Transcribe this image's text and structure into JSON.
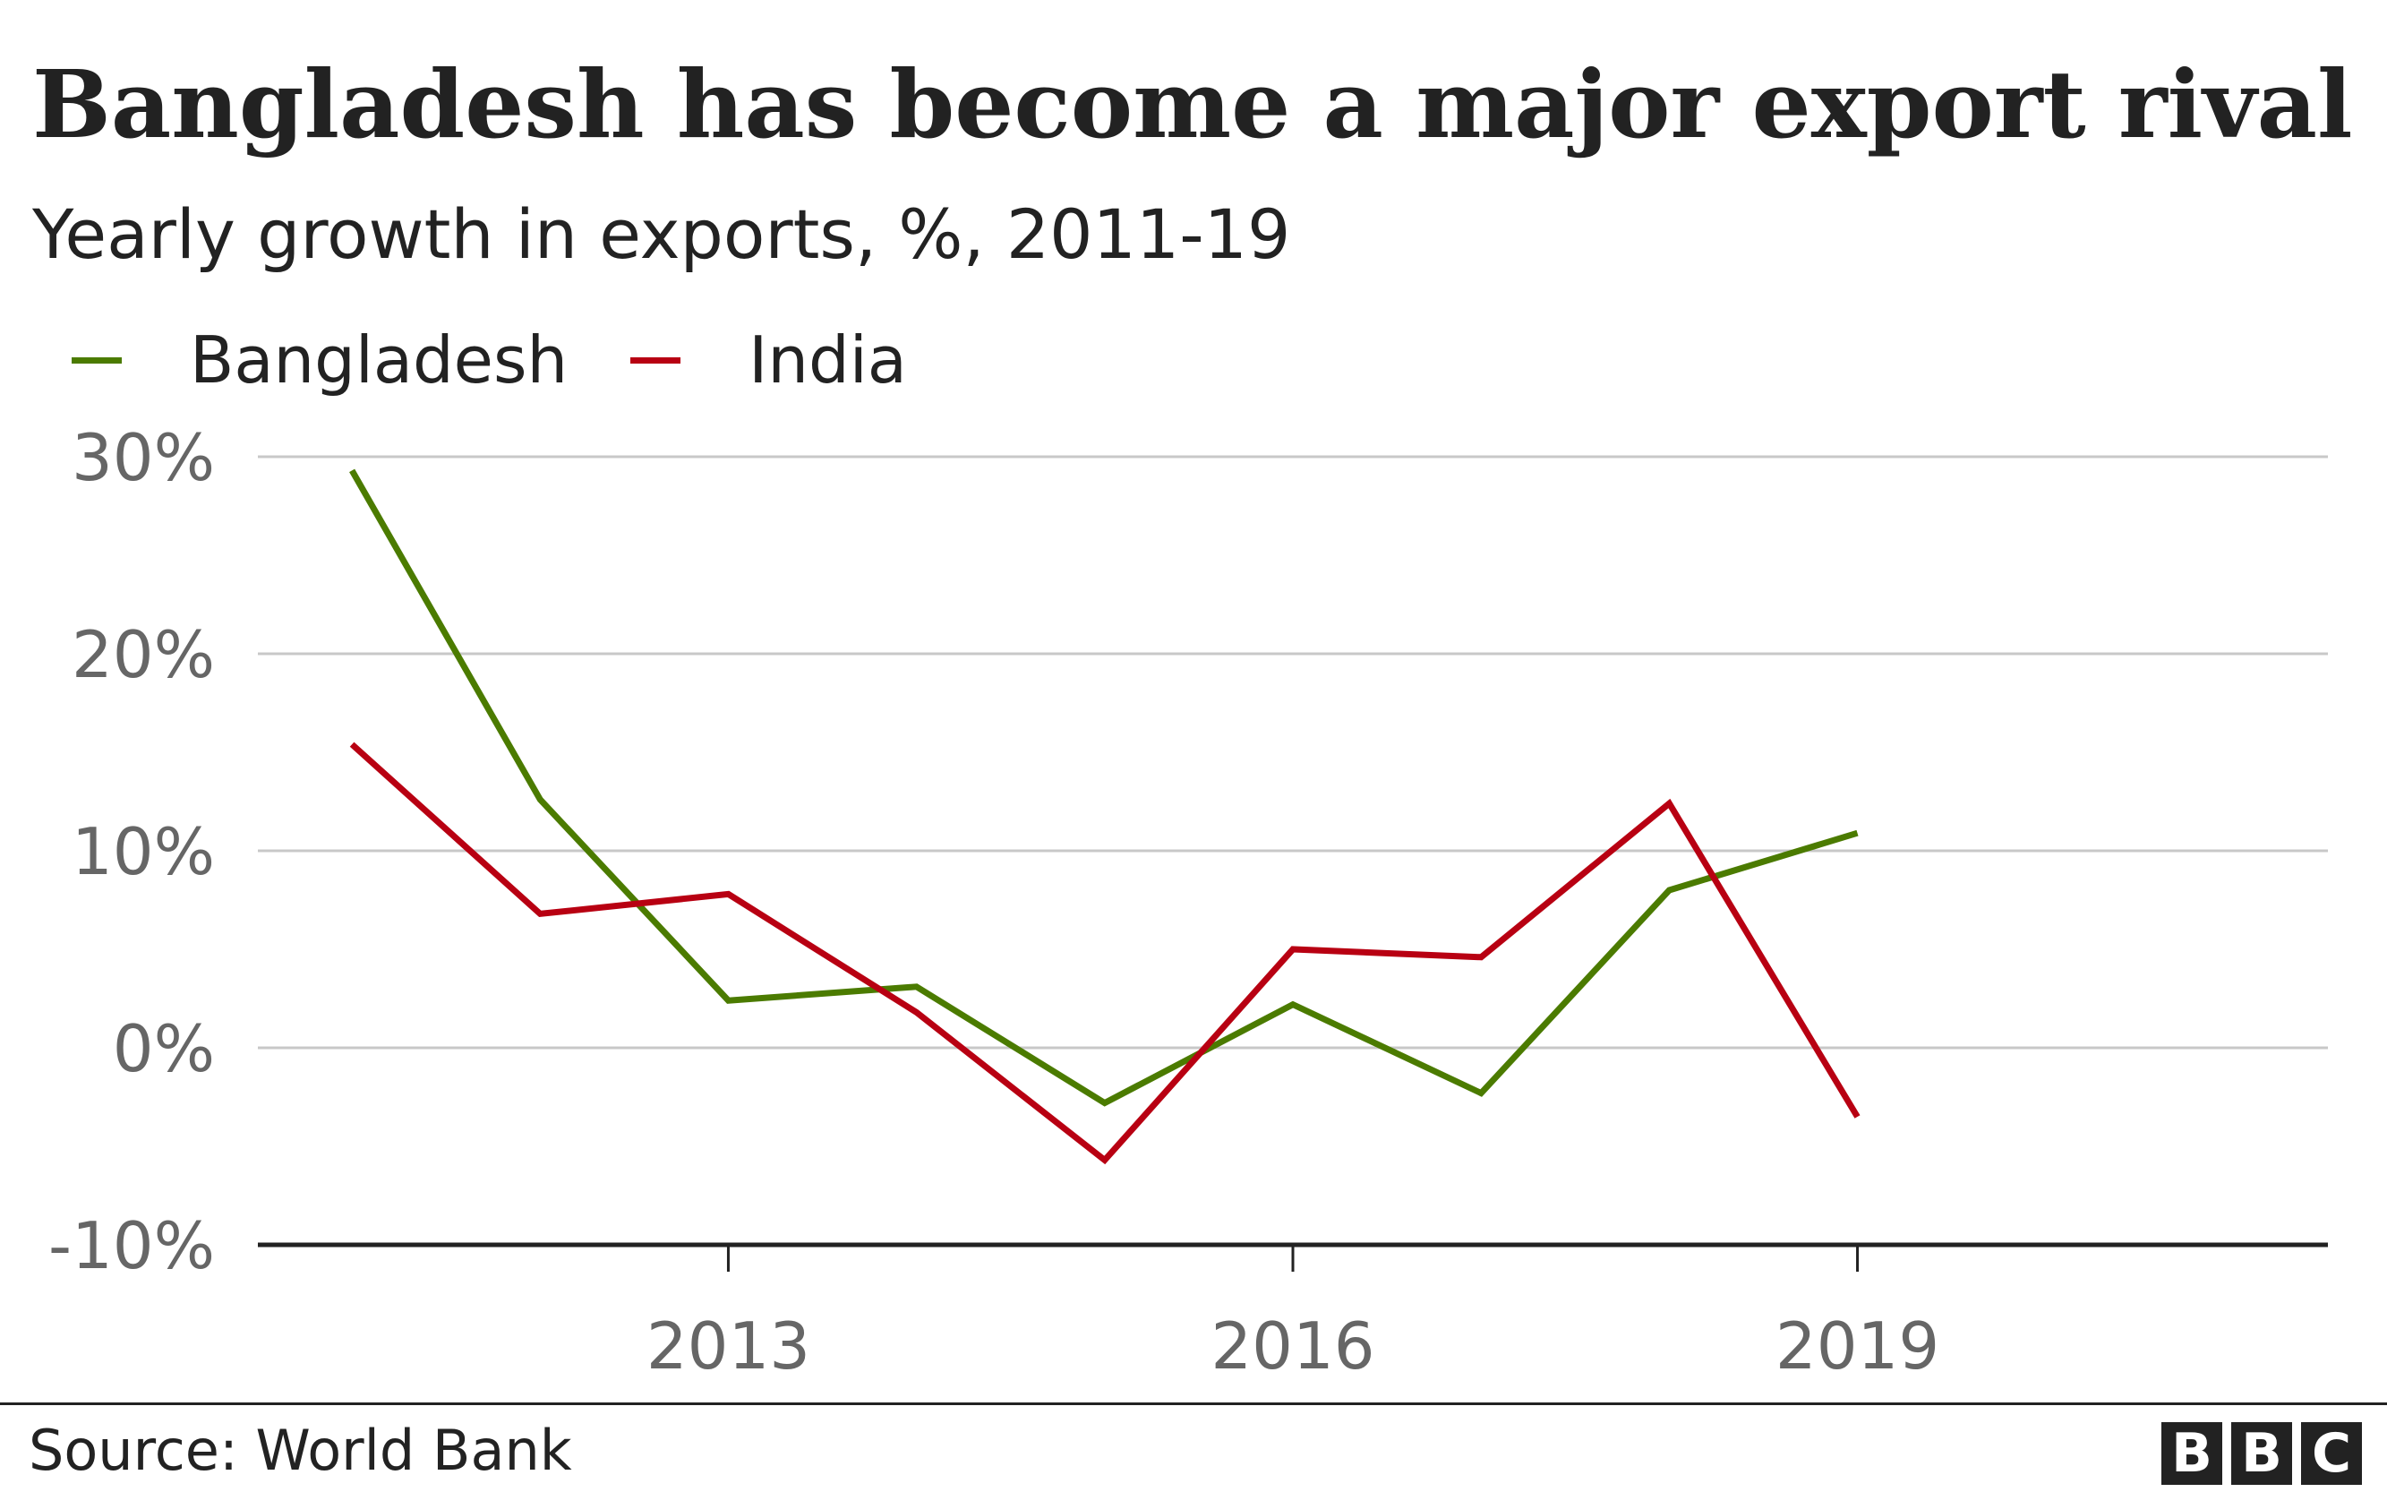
{
  "header": {
    "title": "Bangladesh has become a major export rival",
    "subtitle": "Yearly growth in exports, %, 2011-19"
  },
  "legend": {
    "items": [
      {
        "label": "Bangladesh",
        "color": "#4b7b00"
      },
      {
        "label": "India",
        "color": "#b80012"
      }
    ],
    "placement": "top-left"
  },
  "chart_data": {
    "type": "line",
    "title": "Bangladesh has become a major export rival",
    "subtitle": "Yearly growth in exports, %, 2011-19",
    "xlabel": "",
    "ylabel": "",
    "x": [
      2011,
      2012,
      2013,
      2014,
      2015,
      2016,
      2017,
      2018,
      2019
    ],
    "xlim": [
      2010.5,
      2021.5
    ],
    "xticks": [
      2013,
      2016,
      2019
    ],
    "xtick_labels": [
      "2013",
      "2016",
      "2019"
    ],
    "ylim": [
      -10,
      30
    ],
    "yticks": [
      -10,
      0,
      10,
      20,
      30
    ],
    "ytick_labels": [
      "-10%",
      "0%",
      "10%",
      "20%",
      "30%"
    ],
    "grid": true,
    "series": [
      {
        "name": "Bangladesh",
        "color": "#4b7b00",
        "values": [
          29.3,
          12.6,
          2.4,
          3.1,
          -2.8,
          2.2,
          -2.3,
          8.0,
          10.9
        ]
      },
      {
        "name": "India",
        "color": "#b80012",
        "values": [
          15.4,
          6.8,
          7.8,
          1.8,
          -5.7,
          5.0,
          4.6,
          12.4,
          -3.5
        ]
      }
    ]
  },
  "footer": {
    "source": "Source: World Bank",
    "logo_letters": [
      "B",
      "B",
      "C"
    ]
  },
  "colors": {
    "text": "#222222",
    "axis_text": "#666666",
    "gridline": "#c8c8c8",
    "baseline": "#222222"
  }
}
